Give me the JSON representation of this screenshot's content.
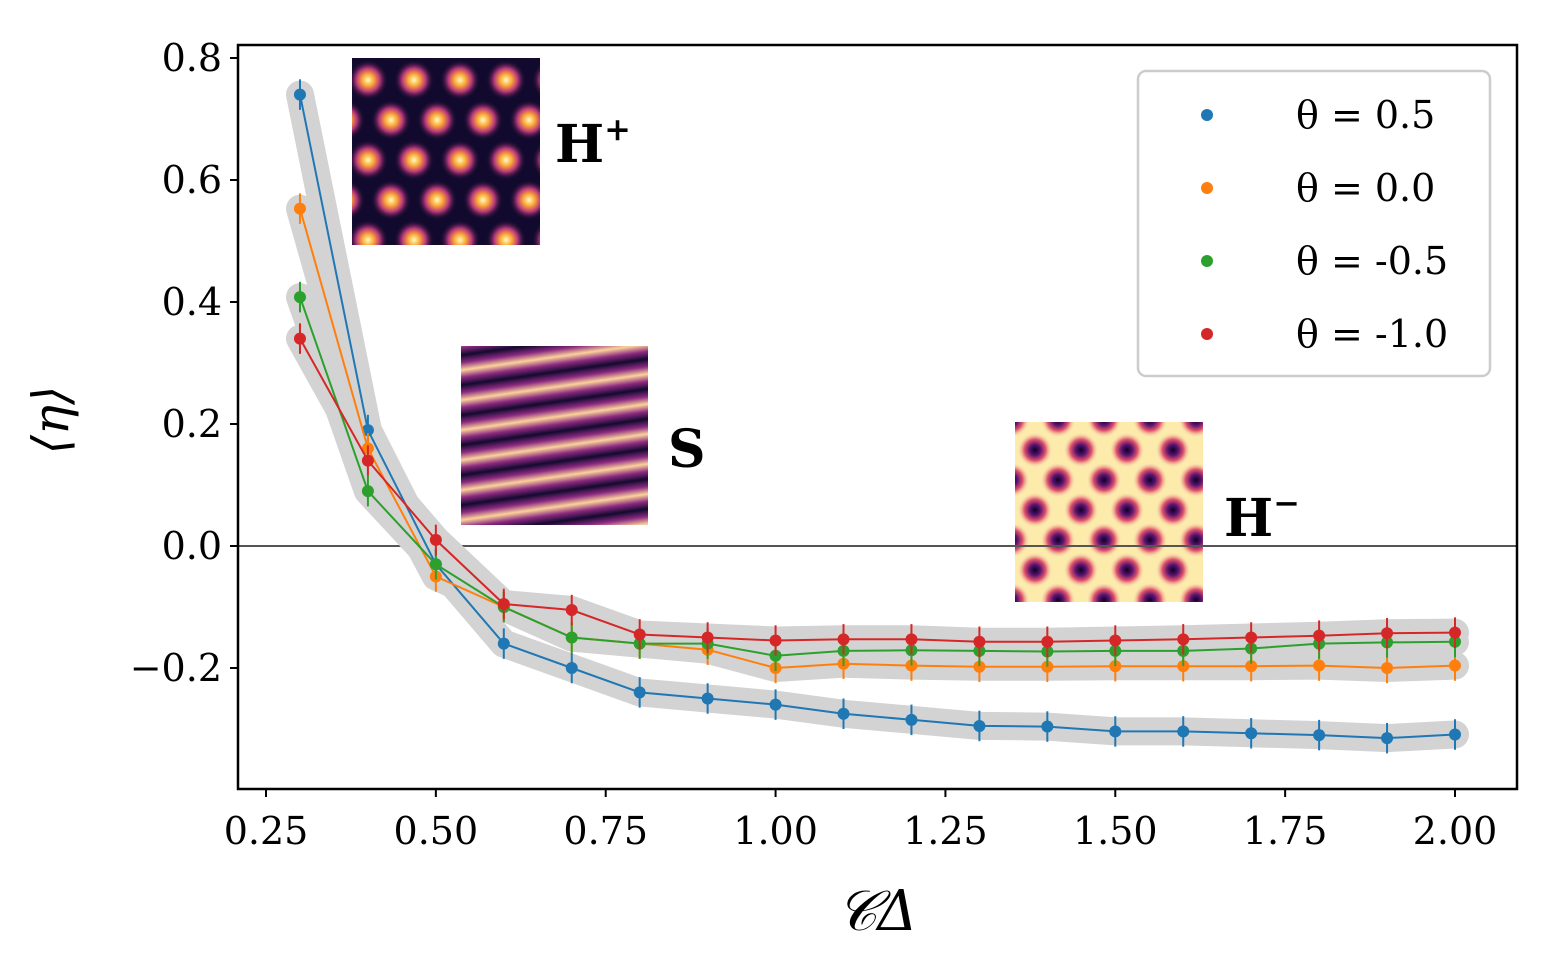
{
  "chart_data": {
    "type": "line",
    "title": "",
    "xlabel": "𝒞Δ",
    "ylabel": "⟨η⟩",
    "xlim": [
      0.22,
      2.09
    ],
    "ylim": [
      -0.4,
      0.82
    ],
    "xticks": [
      0.25,
      0.5,
      0.75,
      1.0,
      1.25,
      1.5,
      1.75,
      2.0
    ],
    "xtick_labels": [
      "0.25",
      "0.50",
      "0.75",
      "1.00",
      "1.25",
      "1.50",
      "1.75",
      "2.00"
    ],
    "yticks": [
      -0.2,
      0.0,
      0.2,
      0.4,
      0.6,
      0.8
    ],
    "ytick_labels": [
      "−0.2",
      "0.0",
      "0.2",
      "0.4",
      "0.6",
      "0.8"
    ],
    "reference_line_y": 0.0,
    "legend_position": "top-right",
    "grid": false,
    "x": [
      0.3,
      0.4,
      0.5,
      0.6,
      0.7,
      0.8,
      0.9,
      1.0,
      1.1,
      1.2,
      1.3,
      1.4,
      1.5,
      1.6,
      1.7,
      1.8,
      1.9,
      2.0
    ],
    "series": [
      {
        "name": "θ = 0.5",
        "color": "#1f77b4",
        "values": [
          0.74,
          0.19,
          -0.03,
          -0.16,
          -0.2,
          -0.24,
          -0.25,
          -0.26,
          -0.275,
          -0.285,
          -0.295,
          -0.296,
          -0.304,
          -0.304,
          -0.307,
          -0.31,
          -0.315,
          -0.309
        ]
      },
      {
        "name": "θ = 0.0",
        "color": "#ff7f0e",
        "values": [
          0.553,
          0.16,
          -0.05,
          -0.1,
          -0.15,
          -0.16,
          -0.17,
          -0.2,
          -0.193,
          -0.196,
          -0.198,
          -0.198,
          -0.197,
          -0.197,
          -0.197,
          -0.196,
          -0.2,
          -0.196
        ]
      },
      {
        "name": "θ = -0.5",
        "color": "#2ca02c",
        "values": [
          0.408,
          0.09,
          -0.03,
          -0.1,
          -0.15,
          -0.16,
          -0.16,
          -0.18,
          -0.172,
          -0.171,
          -0.172,
          -0.173,
          -0.172,
          -0.172,
          -0.168,
          -0.16,
          -0.158,
          -0.157
        ]
      },
      {
        "name": "θ = -1.0",
        "color": "#d62728",
        "values": [
          0.34,
          0.14,
          0.01,
          -0.095,
          -0.105,
          -0.145,
          -0.15,
          -0.155,
          -0.153,
          -0.153,
          -0.157,
          -0.157,
          -0.155,
          -0.153,
          -0.15,
          -0.147,
          -0.143,
          -0.142
        ]
      }
    ],
    "error_bar": 0.025,
    "band_color": "#d3d3d3",
    "annotations": [
      {
        "label": "H",
        "sup": "+",
        "pattern": "hexagonal-bright-spots"
      },
      {
        "label": "S",
        "sup": "",
        "pattern": "stripes"
      },
      {
        "label": "H",
        "sup": "−",
        "pattern": "hexagonal-dark-spots"
      }
    ]
  },
  "colors": {
    "axis": "#000000",
    "zero_line": "#555555",
    "inset_dark": "#0d0221",
    "inset_mid": "#8c2981",
    "inset_light": "#fcfdbf"
  }
}
